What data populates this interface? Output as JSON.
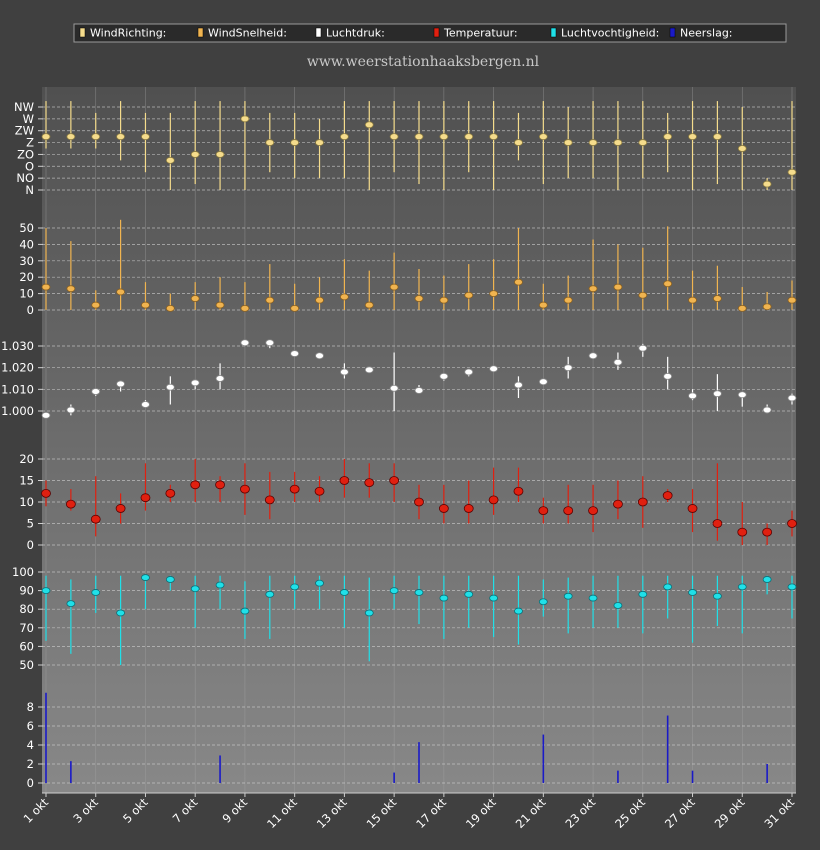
{
  "site": "www.weerstationhaaksbergen.nl",
  "legend": [
    {
      "label": "WindRichting:",
      "color": "#f5dc8c"
    },
    {
      "label": "WindSnelheid:",
      "color": "#f0b450"
    },
    {
      "label": "Luchtdruk:",
      "color": "#ffffff"
    },
    {
      "label": "Temperatuur:",
      "color": "#e02010"
    },
    {
      "label": "Luchtvochtigheid:",
      "color": "#20e0e8"
    },
    {
      "label": "Neerslag:",
      "color": "#1a1ac8"
    }
  ],
  "x_labels": [
    "1 okt",
    "3 okt",
    "5 okt",
    "7 okt",
    "9 okt",
    "11 okt",
    "13 okt",
    "15 okt",
    "17 okt",
    "19 okt",
    "21 okt",
    "23 okt",
    "25 okt",
    "27 okt",
    "29 okt",
    "31 okt"
  ],
  "chart_data": [
    {
      "type": "scatter",
      "name": "WindRichting",
      "color": "#f5dc8c",
      "y_categories": [
        "N",
        "NO",
        "O",
        "ZO",
        "Z",
        "ZW",
        "W",
        "NW"
      ],
      "ylim": [
        0,
        7
      ],
      "x": [
        1,
        2,
        3,
        4,
        5,
        6,
        7,
        8,
        9,
        10,
        11,
        12,
        13,
        14,
        15,
        16,
        17,
        18,
        19,
        20,
        21,
        22,
        23,
        24,
        25,
        26,
        27,
        28,
        29,
        30,
        31
      ],
      "values": [
        4.5,
        4.5,
        4.5,
        4.5,
        4.5,
        2.5,
        3.0,
        3.0,
        6.0,
        4.0,
        4.0,
        4.0,
        4.5,
        5.5,
        4.5,
        4.5,
        4.5,
        4.5,
        4.5,
        4.0,
        4.5,
        4.0,
        4.0,
        4.0,
        4.0,
        4.5,
        4.5,
        4.5,
        3.5,
        0.5,
        1.5
      ],
      "low": [
        3.5,
        3.5,
        3.5,
        2.5,
        1.5,
        0.0,
        0.5,
        0.0,
        0.0,
        1.5,
        1.0,
        1.0,
        1.0,
        0.0,
        1.5,
        0.5,
        0.0,
        1.5,
        0.0,
        2.5,
        0.5,
        1.0,
        1.0,
        0.0,
        1.0,
        1.5,
        0.0,
        0.5,
        0.0,
        0.0,
        0.0
      ],
      "high": [
        7.5,
        7.5,
        6.5,
        7.5,
        6.5,
        6.5,
        7.5,
        7.5,
        7.5,
        6.5,
        6.5,
        6.0,
        7.5,
        7.5,
        7.5,
        7.5,
        7.5,
        7.5,
        7.5,
        6.5,
        7.5,
        7.0,
        7.5,
        7.5,
        7.5,
        6.5,
        7.5,
        7.5,
        7.0,
        1.0,
        7.5
      ]
    },
    {
      "type": "scatter",
      "name": "WindSnelheid",
      "color": "#f0b450",
      "ylim": [
        0,
        55
      ],
      "yticks": [
        0,
        10,
        20,
        30,
        40,
        50
      ],
      "x": [
        1,
        2,
        3,
        4,
        5,
        6,
        7,
        8,
        9,
        10,
        11,
        12,
        13,
        14,
        15,
        16,
        17,
        18,
        19,
        20,
        21,
        22,
        23,
        24,
        25,
        26,
        27,
        28,
        29,
        30,
        31
      ],
      "values": [
        14,
        13,
        3,
        11,
        3,
        1,
        7,
        3,
        1,
        6,
        1,
        6,
        8,
        3,
        14,
        7,
        6,
        9,
        10,
        17,
        3,
        6,
        13,
        14,
        9,
        16,
        6,
        7,
        1,
        2,
        6
      ],
      "low": [
        0,
        0,
        0,
        0,
        0,
        0,
        0,
        0,
        0,
        0,
        0,
        0,
        0,
        0,
        0,
        0,
        0,
        0,
        0,
        0,
        0,
        0,
        0,
        0,
        0,
        0,
        0,
        0,
        0,
        0,
        0
      ],
      "high": [
        50,
        42,
        12,
        55,
        17,
        10,
        17,
        20,
        17,
        28,
        16,
        20,
        31,
        24,
        35,
        25,
        21,
        28,
        31,
        50,
        16,
        21,
        43,
        40,
        38,
        51,
        24,
        27,
        14,
        11,
        18
      ]
    },
    {
      "type": "scatter",
      "name": "Luchtdruk",
      "color": "#ffffff",
      "yticks": [
        1000,
        1010,
        1020,
        1030
      ],
      "tick_labels": [
        "1.000",
        "1.010",
        "1.020",
        "1.030"
      ],
      "ylim": [
        990,
        1040
      ],
      "x": [
        1,
        2,
        3,
        4,
        5,
        6,
        7,
        8,
        9,
        10,
        11,
        12,
        13,
        14,
        15,
        16,
        17,
        18,
        19,
        20,
        21,
        22,
        23,
        24,
        25,
        26,
        27,
        28,
        29,
        30,
        31
      ],
      "values": [
        998,
        1000.5,
        1009,
        1012.5,
        1003,
        1011,
        1013,
        1015,
        1031.5,
        1031.5,
        1026.5,
        1025.5,
        1018,
        1019,
        1010.5,
        1009.5,
        1016,
        1018,
        1019.5,
        1012,
        1013.5,
        1020,
        1025.5,
        1022.5,
        1029,
        1016,
        1007,
        1008,
        1007.5,
        1000.5,
        1006
      ],
      "low": [
        997,
        998,
        1007,
        1009,
        1002,
        1003,
        1010,
        1010,
        1031,
        1029,
        1026,
        1024,
        1015,
        1018,
        1000,
        1008,
        1014,
        1016,
        1018,
        1006,
        1012,
        1015,
        1024,
        1019,
        1025,
        1010,
        1005,
        1000,
        1002,
        999,
        1003
      ],
      "high": [
        999,
        1003,
        1010,
        1014,
        1005,
        1016,
        1014,
        1022,
        1032,
        1032,
        1027,
        1027,
        1022,
        1020,
        1027,
        1012,
        1017,
        1019,
        1021,
        1016,
        1015,
        1025,
        1027,
        1027,
        1031,
        1025,
        1010,
        1017,
        1008,
        1003,
        1008
      ]
    },
    {
      "type": "scatter",
      "name": "Temperatuur",
      "color": "#e02010",
      "ylim": [
        -2,
        22
      ],
      "yticks": [
        0,
        5,
        10,
        15,
        20
      ],
      "x": [
        1,
        2,
        3,
        4,
        5,
        6,
        7,
        8,
        9,
        10,
        11,
        12,
        13,
        14,
        15,
        16,
        17,
        18,
        19,
        20,
        21,
        22,
        23,
        24,
        25,
        26,
        27,
        28,
        29,
        30,
        31
      ],
      "values": [
        12,
        9.5,
        6,
        8.5,
        11,
        12,
        14,
        14,
        13,
        10.5,
        13,
        12.5,
        15,
        14.5,
        15,
        10,
        8.5,
        8.5,
        10.5,
        12.5,
        8,
        8,
        8,
        9.5,
        10,
        11.5,
        8.5,
        5,
        3,
        3,
        5
      ],
      "low": [
        9,
        8,
        2,
        5,
        8,
        10,
        10,
        10,
        7,
        6,
        10,
        10,
        11,
        11,
        10,
        6,
        5,
        5,
        7,
        10,
        5,
        5,
        3,
        6,
        4,
        10,
        3,
        1,
        0,
        0,
        2
      ],
      "high": [
        15,
        13,
        16,
        12,
        19,
        14,
        20,
        16,
        19,
        17,
        17,
        16,
        20,
        19,
        19,
        14,
        14,
        15,
        18,
        18,
        11,
        14,
        14,
        15,
        16,
        13,
        13,
        19,
        10,
        5,
        8
      ]
    },
    {
      "type": "scatter",
      "name": "Luchtvochtigheid",
      "color": "#20e0e8",
      "ylim": [
        45,
        102
      ],
      "yticks": [
        50,
        60,
        70,
        80,
        90,
        100
      ],
      "x": [
        1,
        2,
        3,
        4,
        5,
        6,
        7,
        8,
        9,
        10,
        11,
        12,
        13,
        14,
        15,
        16,
        17,
        18,
        19,
        20,
        21,
        22,
        23,
        24,
        25,
        26,
        27,
        28,
        29,
        30,
        31
      ],
      "values": [
        90,
        83,
        89,
        78,
        97,
        96,
        91,
        93,
        79,
        88,
        92,
        94,
        89,
        78,
        90,
        89,
        86,
        88,
        86,
        79,
        84,
        87,
        86,
        82,
        88,
        92,
        89,
        87,
        92,
        96,
        92
      ],
      "low": [
        63,
        56,
        78,
        50,
        80,
        90,
        70,
        80,
        64,
        64,
        80,
        80,
        70,
        52,
        80,
        72,
        64,
        70,
        65,
        61,
        76,
        67,
        70,
        70,
        67,
        75,
        62,
        71,
        67,
        88,
        75
      ],
      "high": [
        98,
        96,
        98,
        98,
        98,
        98,
        98,
        98,
        95,
        98,
        98,
        98,
        98,
        97,
        98,
        98,
        98,
        98,
        98,
        98,
        96,
        97,
        98,
        98,
        98,
        98,
        98,
        98,
        98,
        98,
        98
      ]
    },
    {
      "type": "bar",
      "name": "Neerslag",
      "color": "#1a1ac8",
      "ylim": [
        0,
        10
      ],
      "yticks": [
        0,
        2,
        4,
        6,
        8
      ],
      "x": [
        1,
        2,
        3,
        4,
        5,
        6,
        7,
        8,
        9,
        10,
        11,
        12,
        13,
        14,
        15,
        16,
        17,
        18,
        19,
        20,
        21,
        22,
        23,
        24,
        25,
        26,
        27,
        28,
        29,
        30,
        31
      ],
      "values": [
        9.5,
        2.3,
        0,
        0,
        0,
        0,
        0,
        2.9,
        0,
        0,
        0,
        0,
        0,
        0,
        1.1,
        4.3,
        0,
        0,
        0,
        0,
        5.1,
        0,
        0,
        1.3,
        0,
        7.1,
        1.3,
        0,
        0,
        2.0,
        0
      ]
    }
  ]
}
